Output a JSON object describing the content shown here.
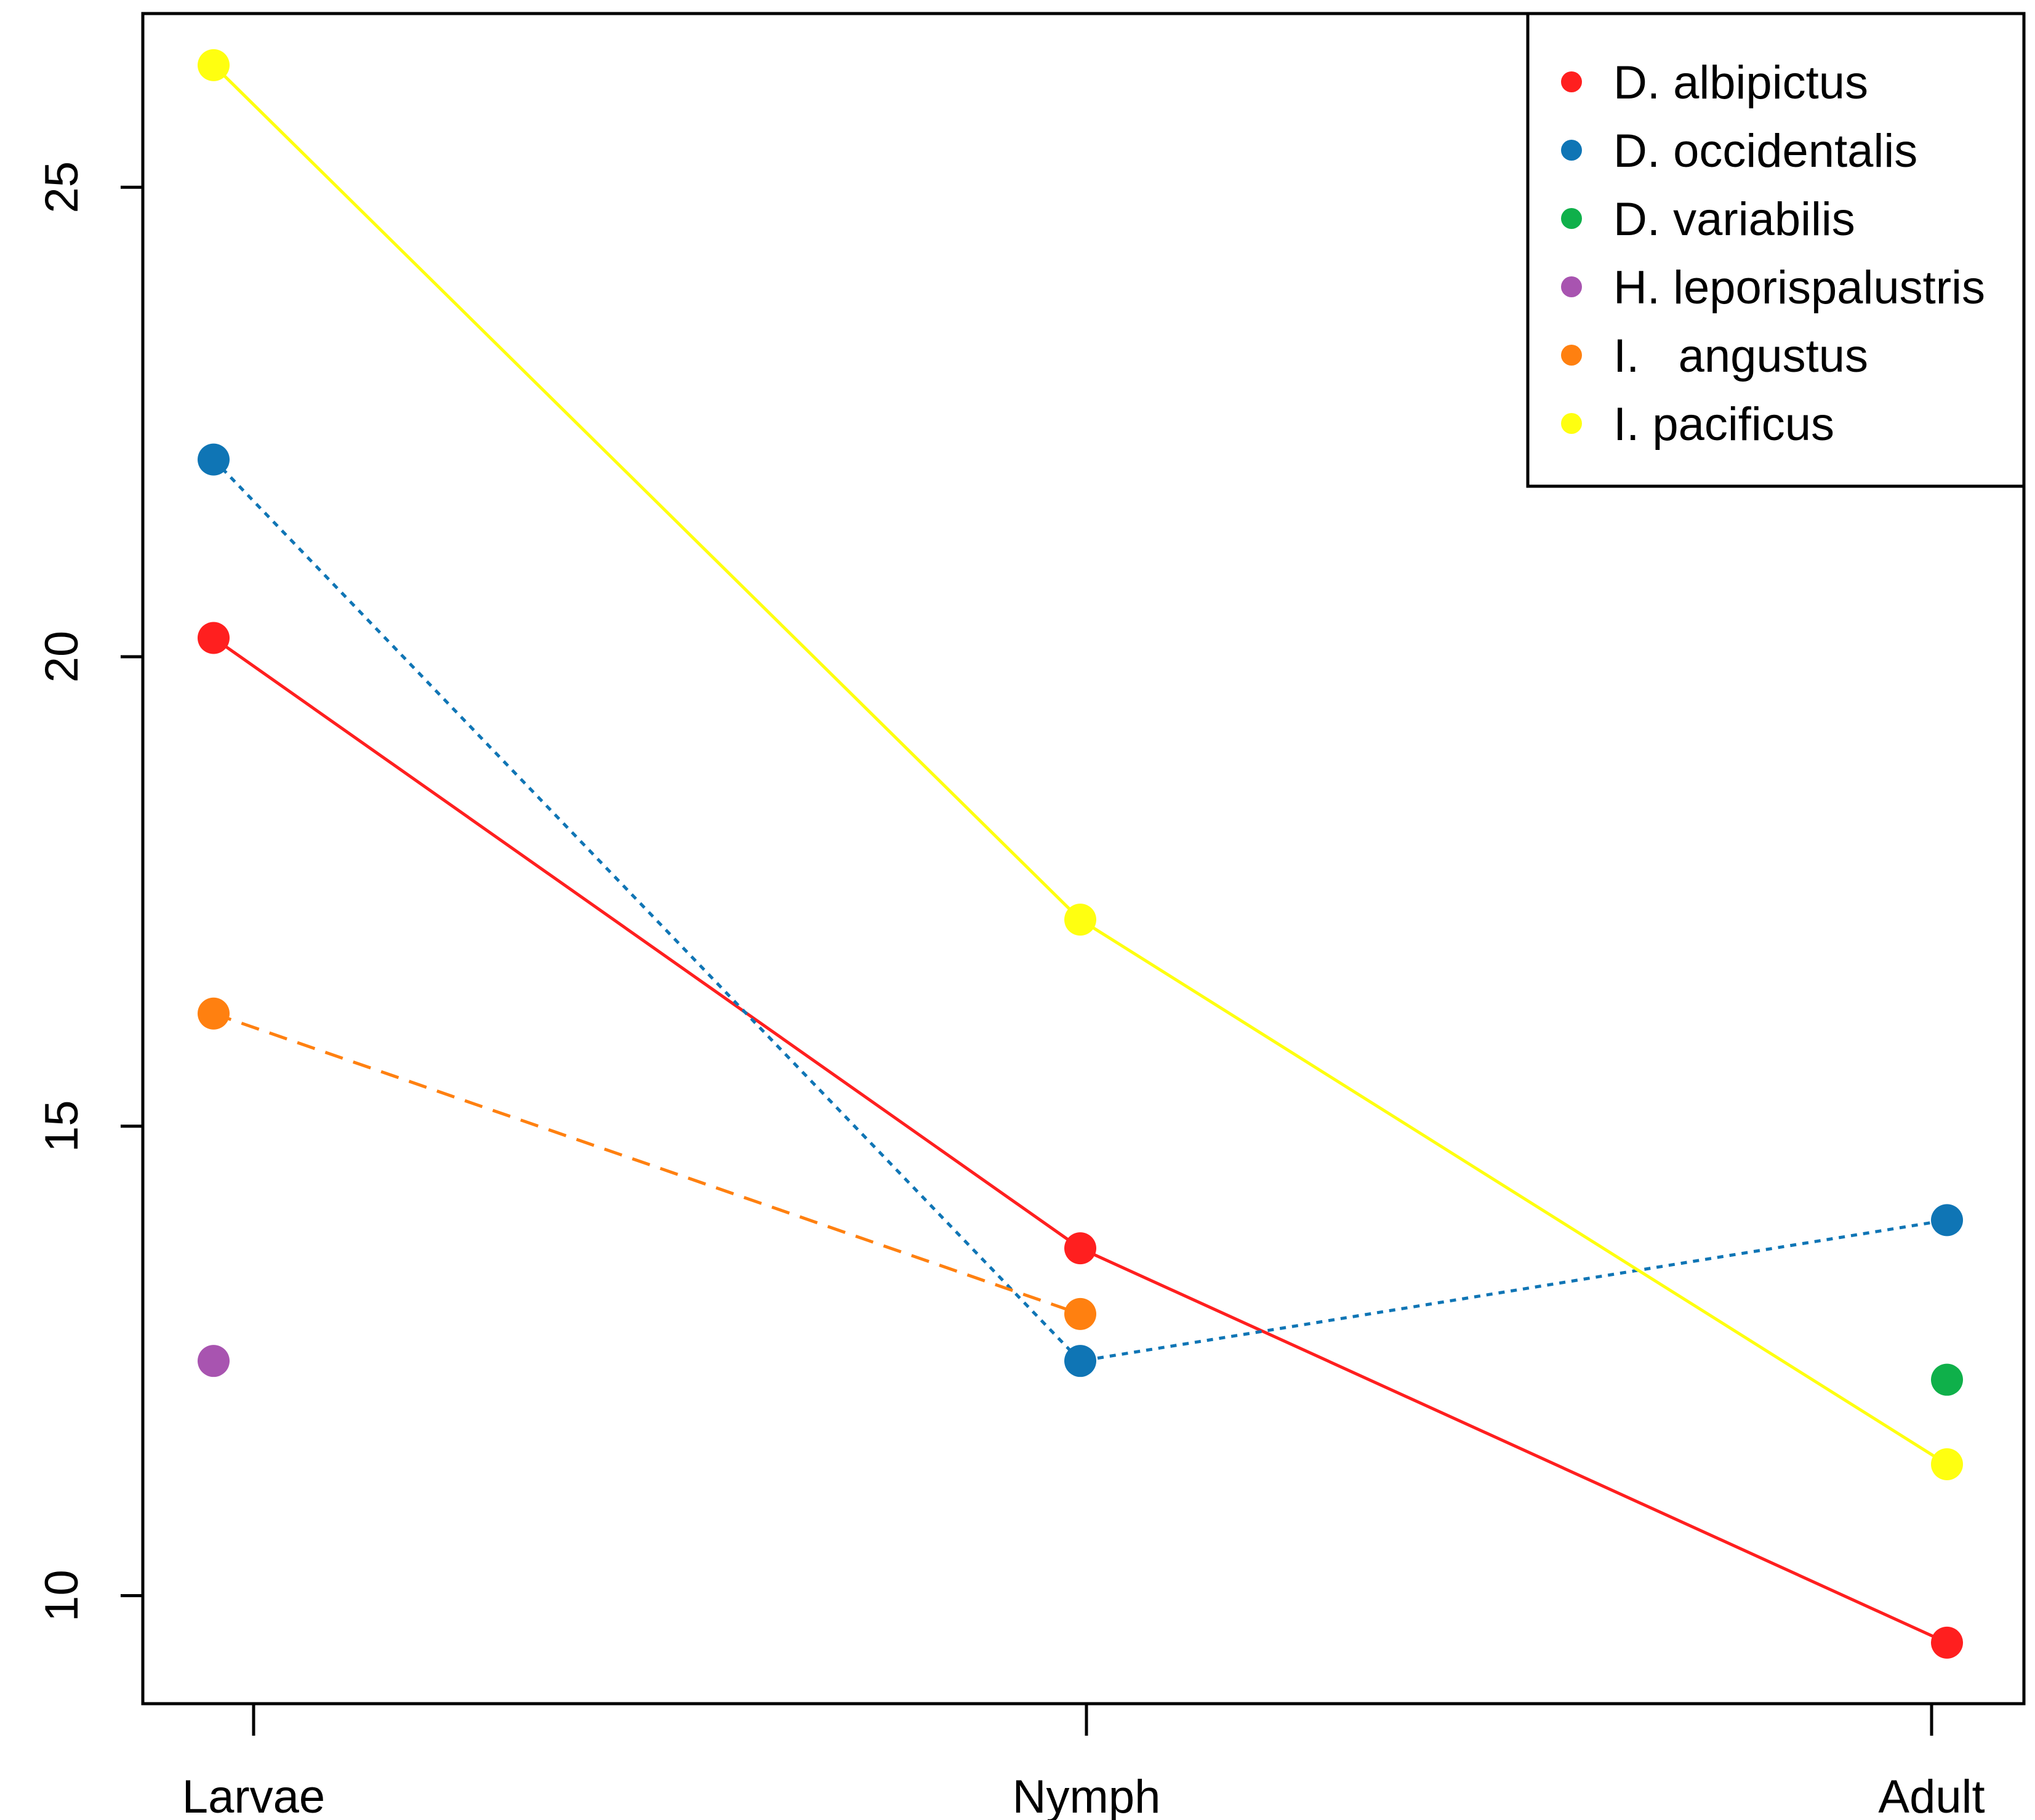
{
  "chart_data": {
    "type": "line",
    "categories": [
      "Larvae",
      "Nymph",
      "Adult"
    ],
    "ylim": [
      8.85,
      26.85
    ],
    "yticks": [
      10,
      15,
      20,
      25
    ],
    "grid": false,
    "legend_position": "top-right",
    "series": [
      {
        "name": "D. albipictus",
        "color": "#ff1f1f",
        "line": "solid",
        "values": [
          20.2,
          13.7,
          9.5
        ]
      },
      {
        "name": "D. occidentalis",
        "color": "#0f75b5",
        "line": "dotted",
        "values": [
          22.1,
          12.5,
          14.0
        ]
      },
      {
        "name": "D. variabilis",
        "color": "#0fb04a",
        "line": "none",
        "values": [
          null,
          null,
          12.3
        ]
      },
      {
        "name": "H. leporispalustris",
        "color": "#a854b0",
        "line": "none",
        "values": [
          12.5,
          null,
          null
        ]
      },
      {
        "name": "I.   angustus",
        "color": "#ff8010",
        "line": "dashed",
        "values": [
          16.2,
          13.0,
          null
        ]
      },
      {
        "name": "I. pacificus",
        "color": "#ffff10",
        "line": "solid",
        "values": [
          26.3,
          17.2,
          11.4
        ]
      }
    ]
  }
}
